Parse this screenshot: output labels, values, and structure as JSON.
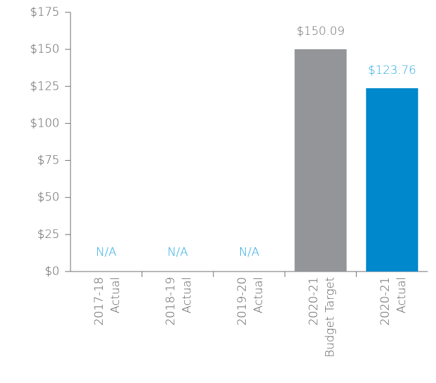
{
  "chart_data": {
    "type": "bar",
    "categories": [
      [
        "2017-18",
        "Actual"
      ],
      [
        "2018-19",
        "Actual"
      ],
      [
        "2019-20",
        "Actual"
      ],
      [
        "2020-21",
        "Budget Target"
      ],
      [
        "2020-21",
        "Actual"
      ]
    ],
    "values": [
      null,
      null,
      null,
      150.09,
      123.76
    ],
    "value_labels": [
      "N/A",
      "N/A",
      "N/A",
      "$150.09",
      "$123.76"
    ],
    "colors": [
      null,
      null,
      null,
      "#939598",
      "#0088cc"
    ],
    "label_colors": [
      "#29a8e0",
      "#29a8e0",
      "#29a8e0",
      "#6d6e71",
      "#29a8e0"
    ],
    "ylim": [
      0,
      175
    ],
    "yticks": [
      {
        "value": 0,
        "label": "$0"
      },
      {
        "value": 25,
        "label": "$25"
      },
      {
        "value": 50,
        "label": "$50"
      },
      {
        "value": 75,
        "label": "$75"
      },
      {
        "value": 100,
        "label": "$100"
      },
      {
        "value": 125,
        "label": "$125"
      },
      {
        "value": 150,
        "label": "$150"
      },
      {
        "value": 175,
        "label": "$175"
      }
    ]
  }
}
